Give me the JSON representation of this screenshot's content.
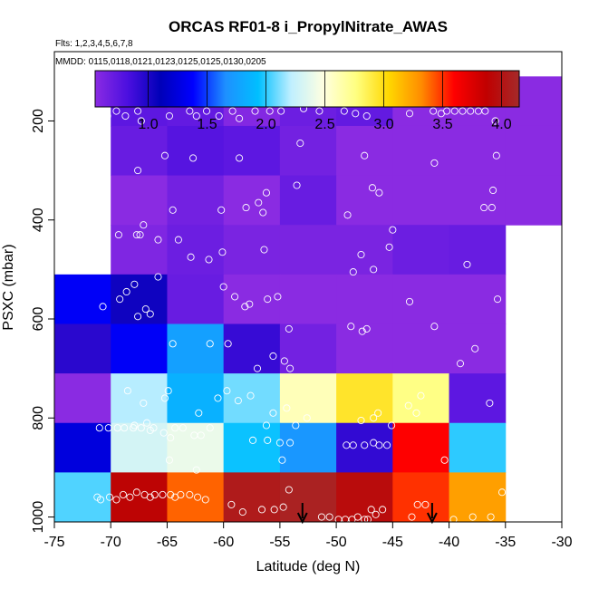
{
  "chart_data": {
    "type": "heatmap",
    "title": "ORCAS RF01-8 i_PropylNitrate_AWAS",
    "subtitle_flights": "Flts: 1,2,3,4,5,6,7,8",
    "subtitle_dates": "MMDD: 0115,0118,0121,0123,0125,0125,0130,0205",
    "xlabel": "Latitude (deg N)",
    "ylabel": "PSXC (mbar)",
    "xlim": [
      -75,
      -30
    ],
    "ylim": [
      1010,
      60
    ],
    "xticks": [
      -75,
      -70,
      -65,
      -60,
      -55,
      -50,
      -45,
      -40,
      -35,
      -30
    ],
    "xtick_labels": [
      "-75",
      "-70",
      "-65",
      "-60",
      "-55",
      "-50",
      "-45",
      "-40",
      "-35",
      "-30"
    ],
    "yticks": [
      200,
      400,
      600,
      800,
      1000
    ],
    "ytick_labels": [
      "200",
      "400",
      "600",
      "800",
      "1000"
    ],
    "colorbar": {
      "range": [
        0.55,
        4.15
      ],
      "ticks": [
        1.0,
        1.5,
        2.0,
        2.5,
        3.0,
        3.5,
        4.0
      ],
      "tick_labels": [
        "1.0",
        "1.5",
        "2.0",
        "2.5",
        "3.0",
        "3.5",
        "4.0"
      ],
      "palette": [
        "#8a2be2",
        "#4b0fe0",
        "#0000b8",
        "#0000ff",
        "#1e90ff",
        "#00bfff",
        "#bfefff",
        "#ffffe0",
        "#ffff80",
        "#ffd700",
        "#ff8c00",
        "#ff0000",
        "#c00000",
        "#a52a2a"
      ]
    },
    "lat_bins": [
      -75,
      -70,
      -65,
      -60,
      -55,
      -50,
      -45,
      -40,
      -35,
      -30
    ],
    "pres_bins": [
      110,
      210,
      310,
      410,
      510,
      610,
      710,
      810,
      910,
      1010
    ],
    "values": [
      [
        null,
        0.75,
        0.72,
        0.58,
        0.68,
        0.72,
        0.5,
        0.42,
        0.42
      ],
      [
        null,
        0.7,
        0.78,
        0.75,
        0.65,
        0.55,
        0.48,
        0.43,
        0.43
      ],
      [
        null,
        0.4,
        0.65,
        0.55,
        0.7,
        0.55,
        0.45,
        0.42,
        0.42
      ],
      [
        null,
        0.6,
        0.68,
        0.62,
        0.62,
        0.62,
        0.68,
        0.7,
        null
      ],
      [
        1.35,
        1.05,
        0.7,
        0.45,
        0.4,
        0.4,
        0.55,
        0.5,
        null
      ],
      [
        0.95,
        1.35,
        1.75,
        0.9,
        0.65,
        0.45,
        0.4,
        0.55,
        null
      ],
      [
        0.35,
        2.2,
        1.85,
        2.1,
        2.6,
        2.95,
        2.75,
        0.75,
        null
      ],
      [
        1.25,
        2.3,
        2.4,
        1.95,
        1.7,
        0.92,
        3.6,
        2.0,
        null
      ],
      [
        2.05,
        3.9,
        3.4,
        4.05,
        4.1,
        3.95,
        3.5,
        3.25,
        null
      ]
    ],
    "points": [
      [
        -70.3,
        190
      ],
      [
        -69.5,
        180
      ],
      [
        -68.7,
        190
      ],
      [
        -67.6,
        180
      ],
      [
        -67.3,
        200
      ],
      [
        -64.8,
        190
      ],
      [
        -63.0,
        180
      ],
      [
        -62.4,
        190
      ],
      [
        -61.5,
        180
      ],
      [
        -60.4,
        190
      ],
      [
        -59.2,
        180
      ],
      [
        -58.6,
        195
      ],
      [
        -57.2,
        180
      ],
      [
        -55.9,
        180
      ],
      [
        -54.9,
        180
      ],
      [
        -52.9,
        175
      ],
      [
        -51.5,
        180
      ],
      [
        -49.3,
        180
      ],
      [
        -48.3,
        185
      ],
      [
        -47.3,
        190
      ],
      [
        -43.5,
        185
      ],
      [
        -41.4,
        180
      ],
      [
        -40.7,
        185
      ],
      [
        -40.2,
        180
      ],
      [
        -39.5,
        180
      ],
      [
        -38.8,
        180
      ],
      [
        -38.1,
        180
      ],
      [
        -37.4,
        180
      ],
      [
        -36.8,
        180
      ],
      [
        -35.9,
        200
      ],
      [
        -67.6,
        300
      ],
      [
        -65.2,
        270
      ],
      [
        -62.7,
        275
      ],
      [
        -58.6,
        275
      ],
      [
        -53.2,
        245
      ],
      [
        -47.5,
        270
      ],
      [
        -41.3,
        285
      ],
      [
        -35.8,
        270
      ],
      [
        -67.4,
        430
      ],
      [
        -64.5,
        380
      ],
      [
        -60.2,
        380
      ],
      [
        -58.0,
        375
      ],
      [
        -56.9,
        365
      ],
      [
        -56.5,
        385
      ],
      [
        -56.2,
        345
      ],
      [
        -53.5,
        330
      ],
      [
        -49.0,
        390
      ],
      [
        -46.8,
        335
      ],
      [
        -46.2,
        345
      ],
      [
        -45.0,
        420
      ],
      [
        -36.9,
        375
      ],
      [
        -36.2,
        375
      ],
      [
        -36.1,
        340
      ],
      [
        -70.6,
        430
      ],
      [
        -69.3,
        430
      ],
      [
        -67.7,
        430
      ],
      [
        -67.1,
        410
      ],
      [
        -65.8,
        440
      ],
      [
        -64.0,
        440
      ],
      [
        -62.9,
        475
      ],
      [
        -61.3,
        480
      ],
      [
        -60.1,
        465
      ],
      [
        -56.4,
        460
      ],
      [
        -48.5,
        505
      ],
      [
        -47.8,
        470
      ],
      [
        -46.7,
        500
      ],
      [
        -45.3,
        455
      ],
      [
        -38.4,
        490
      ],
      [
        -70.7,
        575
      ],
      [
        -69.2,
        560
      ],
      [
        -68.6,
        545
      ],
      [
        -67.9,
        530
      ],
      [
        -67.6,
        595
      ],
      [
        -66.9,
        580
      ],
      [
        -65.8,
        515
      ],
      [
        -60.0,
        535
      ],
      [
        -59.0,
        555
      ],
      [
        -58.1,
        575
      ],
      [
        -57.7,
        570
      ],
      [
        -56.1,
        560
      ],
      [
        -55.2,
        555
      ],
      [
        -54.2,
        620
      ],
      [
        -48.7,
        615
      ],
      [
        -47.7,
        625
      ],
      [
        -47.3,
        620
      ],
      [
        -43.5,
        565
      ],
      [
        -35.7,
        560
      ],
      [
        -66.5,
        590
      ],
      [
        -64.5,
        650
      ],
      [
        -61.2,
        650
      ],
      [
        -59.6,
        650
      ],
      [
        -57.0,
        700
      ],
      [
        -55.6,
        675
      ],
      [
        -54.6,
        685
      ],
      [
        -54.1,
        700
      ],
      [
        -41.3,
        615
      ],
      [
        -39.0,
        690
      ],
      [
        -37.7,
        660
      ],
      [
        -68.5,
        745
      ],
      [
        -67.1,
        770
      ],
      [
        -65.2,
        760
      ],
      [
        -64.9,
        745
      ],
      [
        -62.2,
        790
      ],
      [
        -60.5,
        760
      ],
      [
        -59.7,
        745
      ],
      [
        -58.7,
        765
      ],
      [
        -57.6,
        755
      ],
      [
        -56.2,
        815
      ],
      [
        -55.6,
        790
      ],
      [
        -54.4,
        780
      ],
      [
        -53.6,
        815
      ],
      [
        -52.6,
        800
      ],
      [
        -47.8,
        805
      ],
      [
        -46.7,
        800
      ],
      [
        -46.3,
        790
      ],
      [
        -45.1,
        815
      ],
      [
        -43.6,
        775
      ],
      [
        -42.9,
        790
      ],
      [
        -42.5,
        755
      ],
      [
        -36.4,
        770
      ],
      [
        -67.9,
        815
      ],
      [
        -66.8,
        810
      ],
      [
        -66.5,
        825
      ],
      [
        -65.3,
        830
      ],
      [
        -64.7,
        840
      ],
      [
        -64.3,
        820
      ],
      [
        -63.6,
        820
      ],
      [
        -62.6,
        835
      ],
      [
        -62.0,
        835
      ],
      [
        -61.2,
        820
      ],
      [
        -71.0,
        820
      ],
      [
        -70.2,
        820
      ],
      [
        -69.4,
        820
      ],
      [
        -68.8,
        820
      ],
      [
        -68.0,
        820
      ],
      [
        -67.3,
        820
      ],
      [
        -66.2,
        820
      ],
      [
        -57.4,
        845
      ],
      [
        -56.1,
        845
      ],
      [
        -55.0,
        850
      ],
      [
        -54.1,
        850
      ],
      [
        -49.1,
        855
      ],
      [
        -48.5,
        855
      ],
      [
        -47.5,
        855
      ],
      [
        -46.7,
        850
      ],
      [
        -46.2,
        855
      ],
      [
        -45.5,
        855
      ],
      [
        -64.8,
        885
      ],
      [
        -62.4,
        905
      ],
      [
        -54.8,
        885
      ],
      [
        -40.4,
        885
      ],
      [
        -71.2,
        960
      ],
      [
        -70.9,
        965
      ],
      [
        -70.1,
        960
      ],
      [
        -69.5,
        965
      ],
      [
        -68.9,
        955
      ],
      [
        -68.3,
        960
      ],
      [
        -67.7,
        950
      ],
      [
        -67.0,
        955
      ],
      [
        -66.5,
        960
      ],
      [
        -66.1,
        955
      ],
      [
        -65.4,
        955
      ],
      [
        -64.7,
        955
      ],
      [
        -64.3,
        960
      ],
      [
        -63.8,
        955
      ],
      [
        -63.0,
        955
      ],
      [
        -62.3,
        960
      ],
      [
        -61.6,
        965
      ],
      [
        -59.3,
        975
      ],
      [
        -58.3,
        990
      ],
      [
        -56.6,
        985
      ],
      [
        -55.5,
        985
      ],
      [
        -54.7,
        980
      ],
      [
        -54.2,
        945
      ],
      [
        -51.3,
        1000
      ],
      [
        -50.6,
        1000
      ],
      [
        -49.8,
        1005
      ],
      [
        -49.2,
        1005
      ],
      [
        -48.6,
        1005
      ],
      [
        -48.1,
        1000
      ],
      [
        -47.5,
        1005
      ],
      [
        -47.2,
        1005
      ],
      [
        -46.9,
        985
      ],
      [
        -46.5,
        995
      ],
      [
        -45.9,
        985
      ],
      [
        -43.3,
        1000
      ],
      [
        -42.8,
        975
      ],
      [
        -42.1,
        975
      ],
      [
        -37.9,
        1000
      ],
      [
        -36.3,
        1000
      ],
      [
        -35.3,
        950
      ],
      [
        -39.6,
        1005
      ]
    ],
    "arrows_lat": [
      -53.0,
      -41.5
    ]
  }
}
